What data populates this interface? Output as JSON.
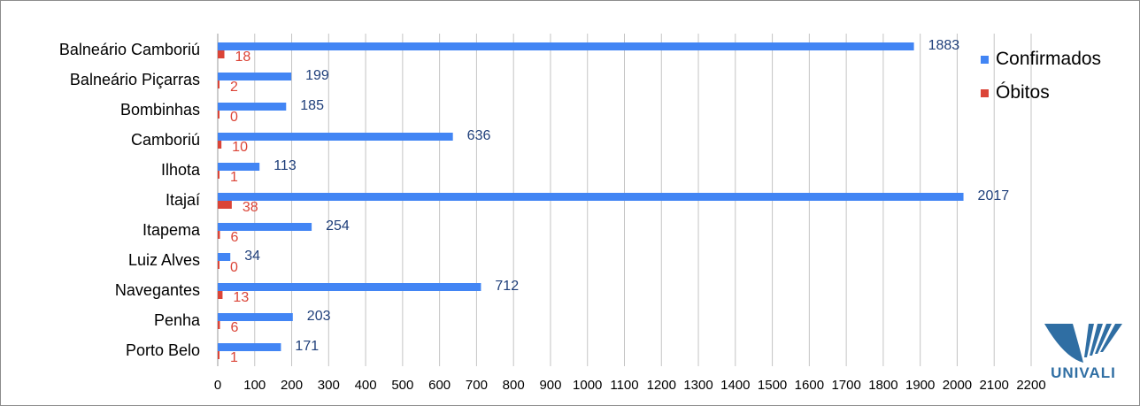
{
  "chart_data": {
    "type": "bar",
    "orientation": "horizontal",
    "categories": [
      "Balneário Camboriú",
      "Balneário Piçarras",
      "Bombinhas",
      "Camboriú",
      "Ilhota",
      "Itajaí",
      "Itapema",
      "Luiz Alves",
      "Navegantes",
      "Penha",
      "Porto Belo"
    ],
    "series": [
      {
        "name": "Confirmados",
        "color": "#4285f4",
        "label_color": "#1f3f7a",
        "values": [
          1883,
          199,
          185,
          636,
          113,
          2017,
          254,
          34,
          712,
          203,
          171
        ]
      },
      {
        "name": "Óbitos",
        "color": "#db4437",
        "label_color": "#db4437",
        "values": [
          18,
          2,
          0,
          10,
          1,
          38,
          6,
          0,
          13,
          6,
          1
        ]
      }
    ],
    "xlim": [
      0,
      2200
    ],
    "xticks": [
      0,
      100,
      200,
      300,
      400,
      500,
      600,
      700,
      800,
      900,
      1000,
      1100,
      1200,
      1300,
      1400,
      1500,
      1600,
      1700,
      1800,
      1900,
      2000,
      2100,
      2200
    ],
    "grid": true,
    "legend_position": "right"
  },
  "logo": {
    "text": "UNIVALI",
    "color": "#2f6ea3"
  }
}
